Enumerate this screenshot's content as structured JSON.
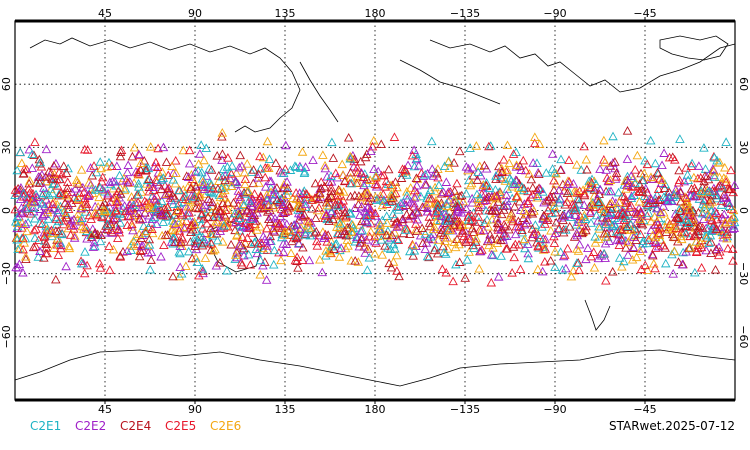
{
  "map": {
    "projection": "equirectangular",
    "central_longitude": 180,
    "longitude_ticks": [
      {
        "lon": 45,
        "label": "45"
      },
      {
        "lon": 90,
        "label": "90"
      },
      {
        "lon": 135,
        "label": "135"
      },
      {
        "lon": 180,
        "label": "180"
      },
      {
        "lon": 225,
        "label": "−135"
      },
      {
        "lon": 270,
        "label": "−90"
      },
      {
        "lon": 315,
        "label": "−45"
      }
    ],
    "latitude_ticks": [
      {
        "lat": 60,
        "label": "60"
      },
      {
        "lat": 30,
        "label": "30"
      },
      {
        "lat": 0,
        "label": "0"
      },
      {
        "lat": -30,
        "label": "−30"
      },
      {
        "lat": -60,
        "label": "−60"
      }
    ],
    "gridlines": true,
    "marker_symbol": "open-triangle",
    "observation_band_latitude": [
      -40,
      40
    ]
  },
  "legend": {
    "placement": "bottom-left",
    "items": [
      {
        "label": "C2E1",
        "color": "#1fb3c4"
      },
      {
        "label": "C2E2",
        "color": "#a020c8"
      },
      {
        "label": "C2E4",
        "color": "#b8141e"
      },
      {
        "label": "C2E5",
        "color": "#e8182c"
      },
      {
        "label": "C2E6",
        "color": "#f4a712"
      }
    ]
  },
  "stamp": "STARwet.2025-07-12"
}
